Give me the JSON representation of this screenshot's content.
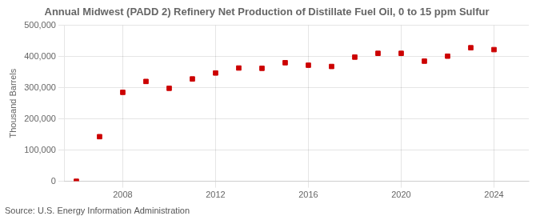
{
  "chart_data": {
    "type": "scatter",
    "title": "Annual Midwest (PADD 2) Refinery Net Production of Distillate Fuel Oil, 0 to 15 ppm Sulfur",
    "ylabel": "Thousand Barrels",
    "annotation": "Source: U.S. Energy Information Administration",
    "x": [
      2006,
      2007,
      2008,
      2009,
      2010,
      2011,
      2012,
      2013,
      2014,
      2015,
      2016,
      2017,
      2018,
      2019,
      2020,
      2021,
      2022,
      2023,
      2024
    ],
    "values": [
      3,
      143000,
      285000,
      320000,
      298000,
      328000,
      347000,
      363000,
      362000,
      380000,
      372000,
      368000,
      398000,
      410000,
      410000,
      385000,
      401000,
      428000,
      422000
    ],
    "color": "#cc0000",
    "marker": "square",
    "xlim": [
      2005.5,
      2025.5
    ],
    "xticks": [
      2008,
      2012,
      2016,
      2020,
      2024
    ],
    "ylim": [
      0,
      500000
    ],
    "yticks": [
      0,
      {
        "value": 100000,
        "label": "100,000"
      },
      {
        "value": 200000,
        "label": "200,000"
      },
      {
        "value": 300000,
        "label": "300,000"
      },
      {
        "value": 400000,
        "label": "400,000"
      },
      {
        "value": 500000,
        "label": "500,000"
      }
    ],
    "grid": true
  }
}
